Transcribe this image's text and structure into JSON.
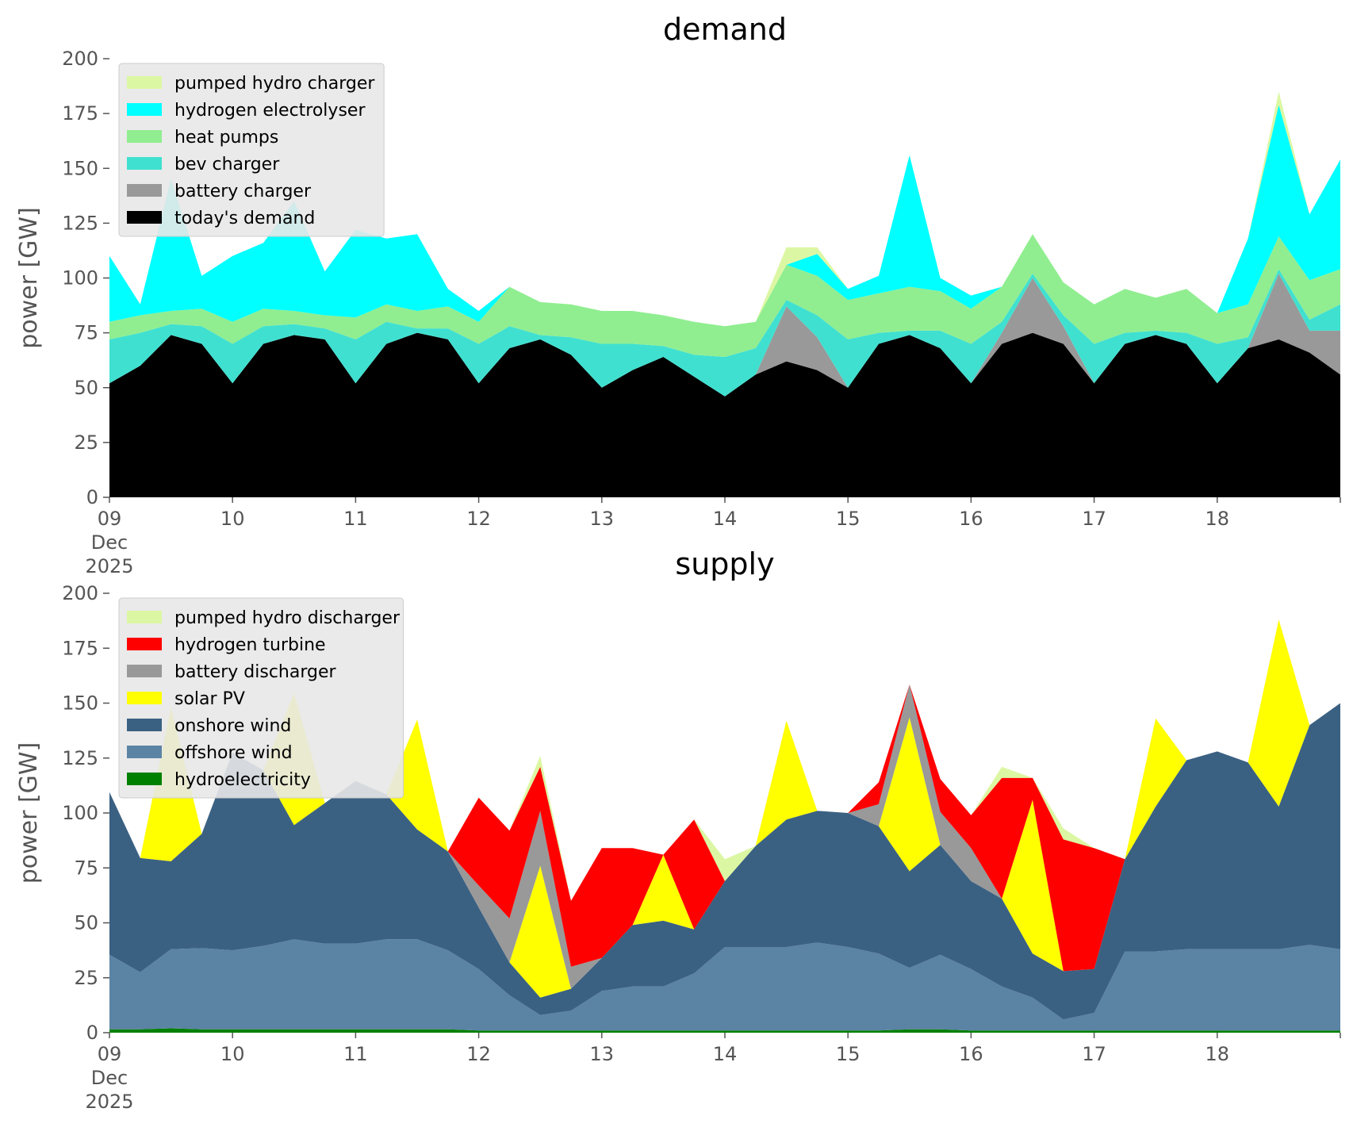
{
  "colors": {
    "pumped_hydro": "#dcf7a3",
    "hydrogen_electrolyser": "#00ffff",
    "heat_pumps": "#90ee90",
    "bev_charger": "#40e0d0",
    "battery": "#999999",
    "todays_demand": "#000000",
    "hydrogen_turbine": "#ff0000",
    "solar_pv": "#ffff00",
    "onshore_wind": "#3b6182",
    "offshore_wind": "#5b83a4",
    "hydroelectricity": "#008000",
    "legend_bg": "#e8e8e8",
    "tick_text": "#555555"
  },
  "chart_data": [
    {
      "type": "area",
      "stacked": true,
      "title": "demand",
      "ylabel": "power [GW]",
      "xlabel": "",
      "ylim": [
        0,
        200
      ],
      "yticks": [
        0,
        25,
        50,
        75,
        100,
        125,
        150,
        175,
        200
      ],
      "xlim": [
        0,
        10
      ],
      "x_tick_labels": [
        "09\nDec\n2025",
        "10",
        "11",
        "12",
        "13",
        "14",
        "15",
        "16",
        "17",
        "18"
      ],
      "legend": "top-left",
      "grid": false,
      "x": [
        0,
        0.25,
        0.5,
        0.75,
        1,
        1.25,
        1.5,
        1.75,
        2,
        2.25,
        2.5,
        2.75,
        3,
        3.25,
        3.5,
        3.75,
        4,
        4.25,
        4.5,
        4.75,
        5,
        5.25,
        5.5,
        5.75,
        6,
        6.25,
        6.5,
        6.75,
        7,
        7.25,
        7.5,
        7.75,
        8,
        8.25,
        8.5,
        8.75,
        9,
        9.25,
        9.5,
        9.75,
        10
      ],
      "series": [
        {
          "name": "today's demand",
          "color_key": "todays_demand",
          "values": [
            52,
            60,
            74,
            70,
            52,
            70,
            74,
            72,
            52,
            70,
            75,
            72,
            52,
            68,
            72,
            65,
            50,
            58,
            64,
            55,
            46,
            56,
            62,
            58,
            50,
            70,
            74,
            68,
            52,
            70,
            75,
            70,
            52,
            70,
            74,
            70,
            52,
            68,
            72,
            66,
            56
          ]
        },
        {
          "name": "battery charger",
          "color_key": "battery",
          "values": [
            0,
            0,
            0,
            0,
            0,
            0,
            0,
            0,
            0,
            0,
            0,
            0,
            0,
            0,
            0,
            0,
            0,
            0,
            0,
            0,
            0,
            0,
            25,
            15,
            0,
            0,
            0,
            0,
            0,
            5,
            25,
            8,
            0,
            0,
            0,
            0,
            0,
            0,
            30,
            10,
            20
          ]
        },
        {
          "name": "bev charger",
          "color_key": "bev_charger",
          "values": [
            20,
            15,
            5,
            8,
            18,
            8,
            5,
            5,
            20,
            10,
            2,
            5,
            18,
            10,
            2,
            8,
            20,
            12,
            5,
            10,
            18,
            12,
            3,
            10,
            22,
            5,
            2,
            8,
            18,
            5,
            2,
            5,
            18,
            5,
            2,
            5,
            18,
            5,
            2,
            5,
            12
          ]
        },
        {
          "name": "heat pumps",
          "color_key": "heat_pumps",
          "values": [
            8,
            8,
            6,
            8,
            10,
            8,
            6,
            6,
            10,
            8,
            8,
            10,
            10,
            18,
            15,
            15,
            15,
            15,
            14,
            15,
            14,
            12,
            16,
            18,
            18,
            18,
            20,
            18,
            16,
            16,
            18,
            15,
            18,
            20,
            15,
            20,
            14,
            15,
            15,
            18,
            16
          ]
        },
        {
          "name": "hydrogen electrolyser",
          "color_key": "hydrogen_electrolyser",
          "values": [
            30,
            5,
            60,
            15,
            30,
            30,
            50,
            20,
            40,
            30,
            35,
            8,
            5,
            0,
            0,
            0,
            0,
            0,
            0,
            0,
            0,
            0,
            0,
            10,
            5,
            8,
            60,
            6,
            6,
            0,
            0,
            0,
            0,
            0,
            0,
            0,
            0,
            30,
            60,
            30,
            50
          ]
        },
        {
          "name": "pumped hydro charger",
          "color_key": "pumped_hydro",
          "values": [
            0,
            0,
            0,
            0,
            0,
            0,
            0,
            0,
            0,
            0,
            0,
            0,
            0,
            0,
            0,
            0,
            0,
            0,
            0,
            0,
            0,
            0,
            8,
            3,
            0,
            0,
            0,
            0,
            0,
            0,
            0,
            0,
            0,
            0,
            0,
            0,
            0,
            0,
            6,
            0,
            0
          ]
        }
      ]
    },
    {
      "type": "area",
      "stacked": true,
      "title": "supply",
      "ylabel": "power [GW]",
      "xlabel": "",
      "ylim": [
        0,
        200
      ],
      "yticks": [
        0,
        25,
        50,
        75,
        100,
        125,
        150,
        175,
        200
      ],
      "xlim": [
        0,
        10
      ],
      "x_tick_labels": [
        "09\nDec\n2025",
        "10",
        "11",
        "12",
        "13",
        "14",
        "15",
        "16",
        "17",
        "18"
      ],
      "legend": "top-left",
      "grid": false,
      "x": [
        0,
        0.25,
        0.5,
        0.75,
        1,
        1.25,
        1.5,
        1.75,
        2,
        2.25,
        2.5,
        2.75,
        3,
        3.25,
        3.5,
        3.75,
        4,
        4.25,
        4.5,
        4.75,
        5,
        5.25,
        5.5,
        5.75,
        6,
        6.25,
        6.5,
        6.75,
        7,
        7.25,
        7.5,
        7.75,
        8,
        8.25,
        8.5,
        8.75,
        9,
        9.25,
        9.5,
        9.75,
        10
      ],
      "series": [
        {
          "name": "hydroelectricity",
          "color_key": "hydroelectricity",
          "values": [
            1.5,
            1.5,
            2,
            1.5,
            1.5,
            1.5,
            1.5,
            1.5,
            1.5,
            1.5,
            1.5,
            1.5,
            1,
            1,
            1,
            1,
            1,
            1,
            1,
            1,
            1,
            1,
            1,
            1,
            1,
            1,
            1.5,
            1.5,
            1,
            1,
            1,
            1,
            1,
            1,
            1,
            1,
            1,
            1,
            1,
            1,
            1
          ]
        },
        {
          "name": "offshore wind",
          "color_key": "offshore_wind",
          "values": [
            34,
            26,
            36,
            37,
            36,
            38,
            41,
            39,
            39,
            41,
            41,
            36,
            28,
            16,
            7,
            9,
            18,
            20,
            20,
            26,
            38,
            38,
            38,
            40,
            38,
            35,
            28,
            34,
            28,
            20,
            15,
            5,
            8,
            36,
            36,
            37,
            37,
            37,
            37,
            39,
            37
          ]
        },
        {
          "name": "onshore wind",
          "color_key": "onshore_wind",
          "values": [
            74,
            52,
            40,
            52,
            90,
            80,
            52,
            64,
            74,
            66,
            50,
            45,
            28,
            15,
            8,
            10,
            15,
            28,
            30,
            20,
            30,
            46,
            58,
            60,
            61,
            58,
            44,
            50,
            40,
            40,
            20,
            22,
            20,
            42,
            66,
            86,
            90,
            85,
            65,
            100,
            112
          ]
        },
        {
          "name": "solar PV",
          "color_key": "solar_pv",
          "values": [
            0,
            0,
            70,
            0,
            0,
            0,
            60,
            0,
            0,
            0,
            50,
            0,
            0,
            0,
            60,
            0,
            0,
            0,
            30,
            0,
            0,
            0,
            45,
            0,
            0,
            0,
            70,
            0,
            0,
            0,
            70,
            0,
            0,
            0,
            40,
            0,
            0,
            0,
            85,
            0,
            0
          ]
        },
        {
          "name": "battery discharger",
          "color_key": "battery",
          "values": [
            0,
            0,
            0,
            0,
            0,
            0,
            0,
            0,
            0,
            0,
            0,
            0,
            10,
            20,
            25,
            10,
            0,
            0,
            0,
            0,
            0,
            0,
            0,
            0,
            0,
            10,
            15,
            15,
            15,
            0,
            0,
            0,
            0,
            0,
            0,
            0,
            0,
            0,
            0,
            0,
            0
          ]
        },
        {
          "name": "hydrogen turbine",
          "color_key": "hydrogen_turbine",
          "values": [
            0,
            0,
            0,
            0,
            0,
            0,
            0,
            0,
            0,
            0,
            0,
            0,
            40,
            40,
            20,
            30,
            50,
            35,
            0,
            50,
            0,
            0,
            0,
            0,
            0,
            10,
            0,
            15,
            15,
            55,
            10,
            60,
            55,
            0,
            0,
            0,
            0,
            0,
            0,
            0,
            0
          ]
        },
        {
          "name": "pumped hydro discharger",
          "color_key": "pumped_hydro",
          "values": [
            0,
            0,
            0,
            0,
            0,
            0,
            0,
            0,
            0,
            0,
            0,
            0,
            0,
            0,
            5,
            0,
            0,
            0,
            0,
            0,
            10,
            0,
            0,
            0,
            0,
            0,
            0,
            0,
            0,
            5,
            0,
            5,
            0,
            0,
            0,
            0,
            0,
            0,
            0,
            0,
            0
          ]
        }
      ]
    }
  ]
}
